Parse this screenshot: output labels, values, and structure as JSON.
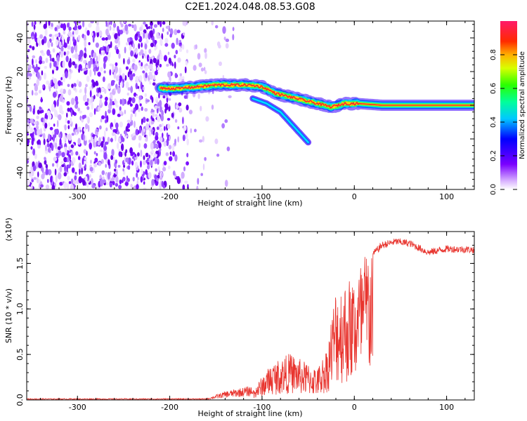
{
  "title": "C2E1.2024.048.08.53.G08",
  "colors": {
    "snr_line": "#e8342e",
    "ridge": "#ff2a2a"
  },
  "colorbar": {
    "label": "Normalized spectral amplitude",
    "ticks": [
      {
        "value": 0.0,
        "label": "0.0"
      },
      {
        "value": 0.2,
        "label": "0.2"
      },
      {
        "value": 0.4,
        "label": "0.4"
      },
      {
        "value": 0.6,
        "label": "0.6"
      },
      {
        "value": 0.8,
        "label": "0.8"
      }
    ],
    "range": [
      0,
      1
    ]
  },
  "chart_data": [
    {
      "type": "heatmap",
      "name": "spectrogram",
      "title": "C2E1.2024.048.08.53.G08",
      "xlabel": "Height of straight line (km)",
      "ylabel": "Frequency (Hz)",
      "xlim": [
        -355,
        130
      ],
      "ylim": [
        -50,
        50
      ],
      "xticks": [
        {
          "value": -300,
          "label": "-300"
        },
        {
          "value": -200,
          "label": "-200"
        },
        {
          "value": -100,
          "label": "-100"
        },
        {
          "value": 0,
          "label": "0"
        },
        {
          "value": 100,
          "label": "100"
        }
      ],
      "yticks": [
        {
          "value": -40,
          "label": "-40"
        },
        {
          "value": -20,
          "label": "-20"
        },
        {
          "value": 0,
          "label": "0"
        },
        {
          "value": 20,
          "label": "20"
        },
        {
          "value": 40,
          "label": "40"
        }
      ],
      "ridge": {
        "x": [
          -210,
          -190,
          -170,
          -150,
          -130,
          -115,
          -100,
          -85,
          -70,
          -55,
          -40,
          -25,
          -10,
          5,
          30,
          60,
          90,
          130
        ],
        "y": [
          10,
          10,
          11,
          12,
          12,
          12,
          11,
          7,
          5,
          3,
          1,
          -1,
          1,
          1,
          0,
          0,
          0,
          0
        ]
      },
      "secondary_branch": {
        "x": [
          -110,
          -95,
          -80,
          -70,
          -60,
          -50
        ],
        "y": [
          4,
          1,
          -4,
          -10,
          -16,
          -22
        ]
      },
      "noise_regions": [
        {
          "x": [
            -355,
            -210
          ],
          "density": 1.0
        },
        {
          "x": [
            -210,
            -180
          ],
          "density": 0.6
        },
        {
          "x": [
            -180,
            -130
          ],
          "density": 0.12
        }
      ]
    },
    {
      "type": "line",
      "name": "snr",
      "xlabel": "Height of straight line (km)",
      "ylabel": "SNR (10 * v/v)",
      "y_multiplier_label": "(x10⁴)",
      "xlim": [
        -355,
        130
      ],
      "ylim": [
        0,
        1.85
      ],
      "xticks": [
        {
          "value": -300,
          "label": "-300"
        },
        {
          "value": -200,
          "label": "-200"
        },
        {
          "value": -100,
          "label": "-100"
        },
        {
          "value": 0,
          "label": "0"
        },
        {
          "value": 100,
          "label": "100"
        }
      ],
      "yticks": [
        {
          "value": 0.0,
          "label": "0.0"
        },
        {
          "value": 0.5,
          "label": "0.5"
        },
        {
          "value": 1.0,
          "label": "1.0"
        },
        {
          "value": 1.5,
          "label": "1.5"
        }
      ],
      "envelope": {
        "x": [
          -355,
          -160,
          -140,
          -110,
          -90,
          -70,
          -50,
          -40,
          -30,
          -20,
          -10,
          0,
          10,
          20,
          30,
          45,
          60,
          80,
          100,
          130
        ],
        "y": [
          0.01,
          0.01,
          0.06,
          0.1,
          0.35,
          0.45,
          0.35,
          0.3,
          0.5,
          1.1,
          1.15,
          1.2,
          1.4,
          1.6,
          1.7,
          1.74,
          1.72,
          1.62,
          1.66,
          1.65
        ]
      }
    }
  ]
}
